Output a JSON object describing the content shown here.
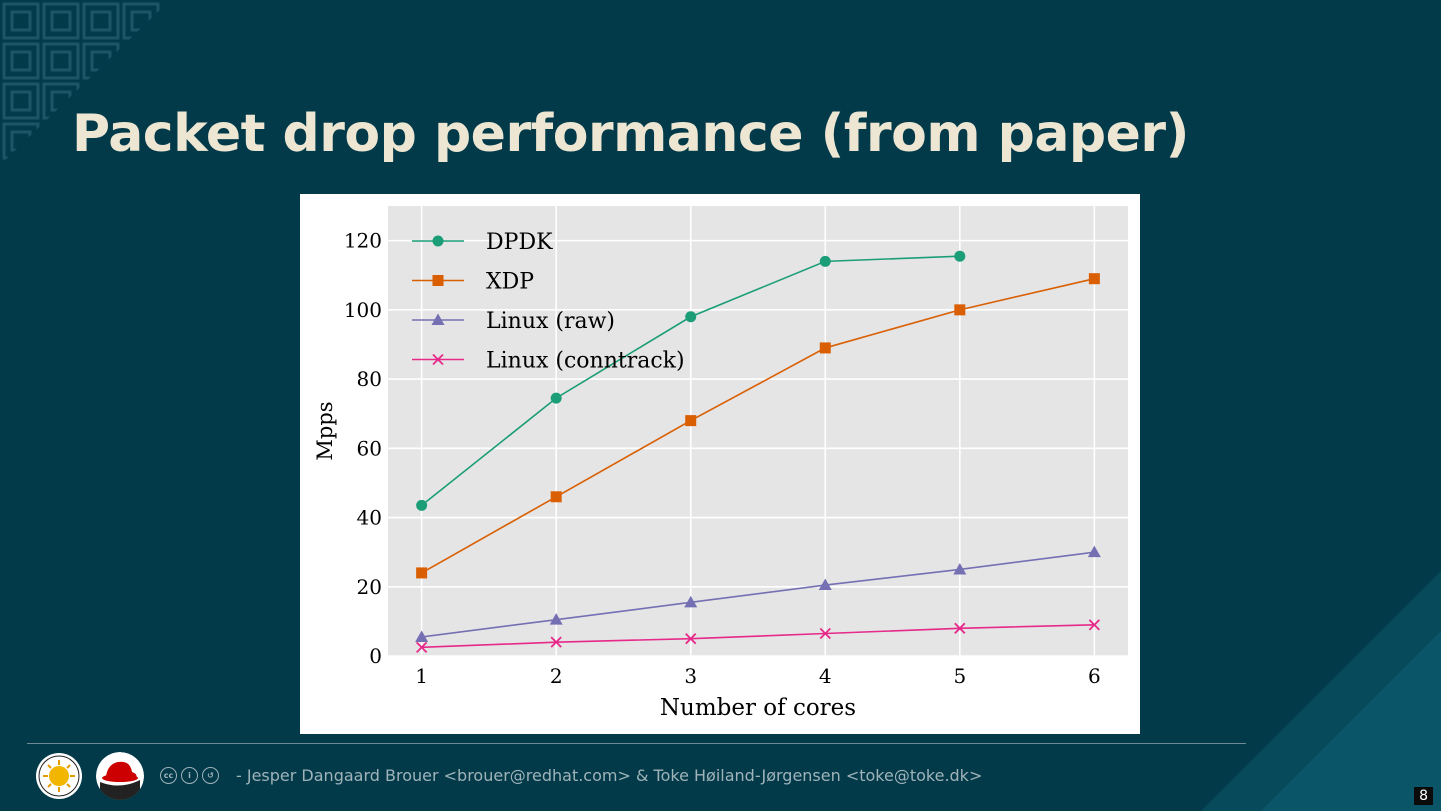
{
  "slide": {
    "title": "Packet drop performance (from paper)",
    "footer_credit": "- Jesper Dangaard Brouer <brouer@redhat.com> & Toke Høiland-Jørgensen <toke@toke.dk>",
    "page_number": "8",
    "license_icons": [
      "cc",
      "by",
      "sa"
    ]
  },
  "colors": {
    "background": "#033a4a",
    "title": "#ece6d2",
    "plot_bg": "#e5e5e5",
    "dpdk": "#1b9e77",
    "xdp": "#d95f02",
    "linux_raw": "#7570b3",
    "linux_conntrack": "#e7298a"
  },
  "chart_data": {
    "type": "line",
    "title": "",
    "xlabel": "Number of cores",
    "ylabel": "Mpps",
    "x": [
      1,
      2,
      3,
      4,
      5,
      6
    ],
    "xlim": [
      0.75,
      6.25
    ],
    "ylim": [
      0,
      130
    ],
    "yticks": [
      0,
      20,
      40,
      60,
      80,
      100,
      120
    ],
    "xticks": [
      1,
      2,
      3,
      4,
      5,
      6
    ],
    "grid": true,
    "legend_position": "top-left",
    "series": [
      {
        "name": "DPDK",
        "marker": "circle",
        "color": "#1b9e77",
        "x": [
          1,
          2,
          3,
          4,
          5
        ],
        "values": [
          43.5,
          74.5,
          98,
          114,
          115.5
        ]
      },
      {
        "name": "XDP",
        "marker": "square",
        "color": "#d95f02",
        "x": [
          1,
          2,
          3,
          4,
          5,
          6
        ],
        "values": [
          24,
          46,
          68,
          89,
          100,
          109
        ]
      },
      {
        "name": "Linux (raw)",
        "marker": "triangle",
        "color": "#7570b3",
        "x": [
          1,
          2,
          3,
          4,
          5,
          6
        ],
        "values": [
          5.5,
          10.5,
          15.5,
          20.5,
          25,
          30
        ]
      },
      {
        "name": "Linux (conntrack)",
        "marker": "x",
        "color": "#e7298a",
        "x": [
          1,
          2,
          3,
          4,
          5,
          6
        ],
        "values": [
          2.5,
          4,
          5,
          6.5,
          8,
          9
        ]
      }
    ]
  }
}
